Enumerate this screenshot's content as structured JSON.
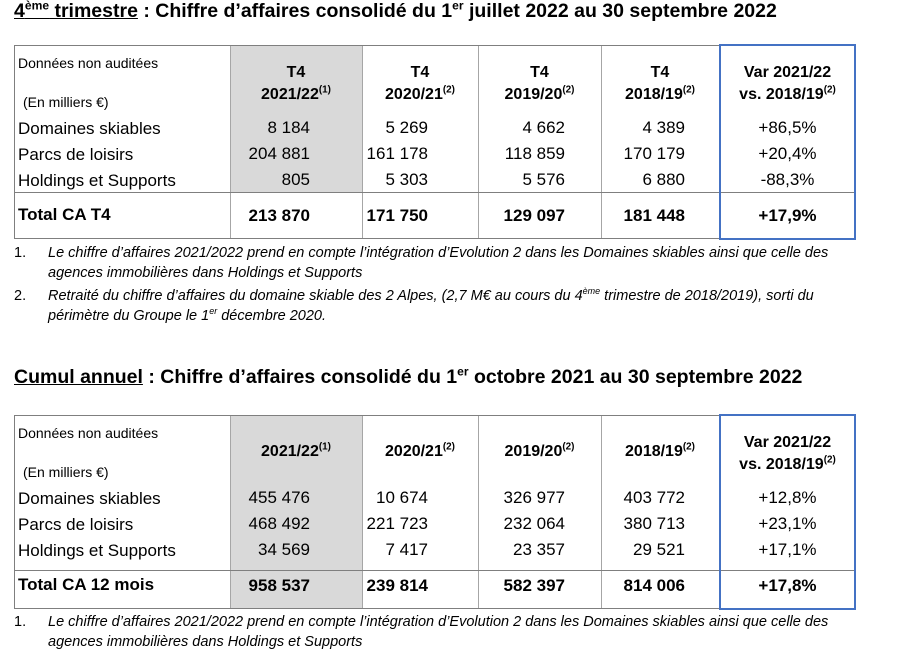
{
  "section1": {
    "title_ordinal": "4",
    "title_ordinal_sup": "ème",
    "title_highlight": " trimestre",
    "title_rest_a": " : Chiffre d’affaires consolidé du 1",
    "title_rest_sup": "er",
    "title_rest_b": " juillet 2022 au 30 septembre 2022",
    "label_unaudited": "Données non auditées",
    "label_units": "(En milliers €)",
    "headers": [
      {
        "line1": "T4",
        "line2": "2021/22",
        "sup": "(1)"
      },
      {
        "line1": "T4",
        "line2": "2020/21",
        "sup": "(2)"
      },
      {
        "line1": "T4",
        "line2": "2019/20",
        "sup": "(2)"
      },
      {
        "line1": "T4",
        "line2": "2018/19",
        "sup": "(2)"
      }
    ],
    "var_header": {
      "line1": "Var 2021/22",
      "line2": "vs. 2018/19",
      "sup": "(2)"
    },
    "rows": [
      {
        "label": "Domaines skiables",
        "values": [
          "8 184",
          "5 269",
          "4 662",
          "4 389"
        ],
        "var": "+86,5%"
      },
      {
        "label": "Parcs de loisirs",
        "values": [
          "204 881",
          "161 178",
          "118 859",
          "170 179"
        ],
        "var": "+20,4%"
      },
      {
        "label": "Holdings et Supports",
        "values": [
          "805",
          "5 303",
          "5 576",
          "6 880"
        ],
        "var": "-88,3%"
      }
    ],
    "total": {
      "label": "Total CA T4",
      "values": [
        "213 870",
        "171 750",
        "129 097",
        "181 448"
      ],
      "var": "+17,9%"
    },
    "notes": [
      {
        "num": "1.",
        "text": "Le chiffre d’affaires 2021/2022 prend en compte l’intégration d’Evolution 2 dans les Domaines skiables ainsi que celle des",
        "text2": "agences immobilières dans Holdings et Supports"
      },
      {
        "num": "2.",
        "text": "Retraité du chiffre d’affaires du domaine skiable des 2 Alpes, (2,7 M€ au cours du 4",
        "sup": "ème",
        "text_b": " trimestre de 2018/2019), sorti du",
        "text2a": "périmètre du Groupe le 1",
        "sup2": "er",
        "text2b": " décembre 2020."
      }
    ]
  },
  "section2": {
    "title_highlight": "Cumul annuel",
    "title_rest_a": " : Chiffre d’affaires consolidé du 1",
    "title_rest_sup": "er",
    "title_rest_b": " octobre 2021 au 30 septembre 2022",
    "label_unaudited": "Données non auditées",
    "label_units": "(En milliers €)",
    "headers": [
      {
        "line2": "2021/22",
        "sup": "(1)"
      },
      {
        "line2": "2020/21",
        "sup": "(2)"
      },
      {
        "line2": "2019/20",
        "sup": "(2)"
      },
      {
        "line2": "2018/19",
        "sup": "(2)"
      }
    ],
    "var_header": {
      "line1": "Var 2021/22",
      "line2": "vs. 2018/19",
      "sup": "(2)"
    },
    "rows": [
      {
        "label": "Domaines skiables",
        "values": [
          "455 476",
          "10 674",
          "326 977",
          "403 772"
        ],
        "var": "+12,8%"
      },
      {
        "label": "Parcs de loisirs",
        "values": [
          "468 492",
          "221 723",
          "232 064",
          "380 713"
        ],
        "var": "+23,1%"
      },
      {
        "label": "Holdings et Supports",
        "values": [
          "34 569",
          "7 417",
          "23 357",
          "29 521"
        ],
        "var": "+17,1%"
      }
    ],
    "total": {
      "label": "Total CA 12 mois",
      "values": [
        "958 537",
        "239 814",
        "582 397",
        "814 006"
      ],
      "var": "+17,8%"
    },
    "notes": [
      {
        "num": "1.",
        "text": "Le chiffre d’affaires 2021/2022 prend en compte l’intégration d’Evolution 2 dans les Domaines skiables ainsi que celle des",
        "text2": "agences immobilières dans Holdings et Supports"
      }
    ]
  }
}
